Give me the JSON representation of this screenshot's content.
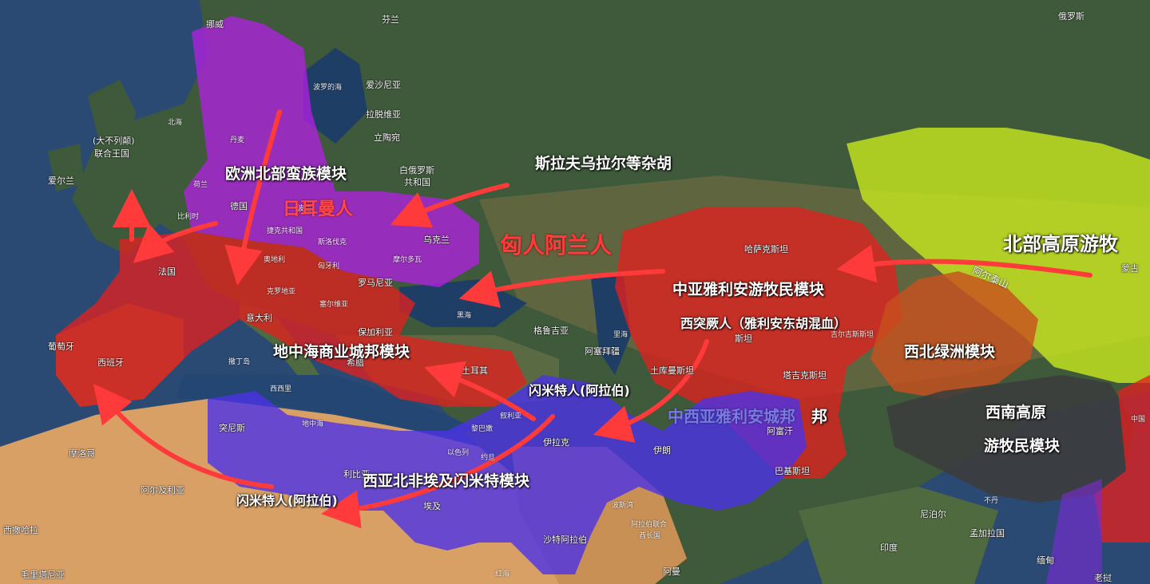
{
  "colors": {
    "sea": "#2b4a73",
    "land_north": "#3d5a3a",
    "land_steppe": "#6e6b3c",
    "desert": "#d9a066",
    "germanic": "#b020e0",
    "mediterranean": "#e0201f",
    "semitic": "#4b32e6",
    "steppe": "#c8e81e",
    "oasis": "#c8501e",
    "tibet": "#3c3c3c",
    "arrow": "#ff3a3a"
  },
  "modules": {
    "north_europe": "欧洲北部蛮族模块",
    "mediterranean": "地中海商业城邦模块",
    "central_asia_nomad": "中亚雅利安游牧民模块",
    "northwest_oasis": "西北绿洲模块",
    "southwest_line1": "西南高原",
    "southwest_line2": "游牧民模块",
    "west_asia_africa": "西亚北非埃及闪米特模块",
    "central_west_asia_city": "中西亚雅利安城邦",
    "north_plateau": "北部高原游牧"
  },
  "peoples": {
    "germanic": "日耳曼人",
    "huns_alans": "匈人阿兰人",
    "slavs_urals": "斯拉夫乌拉尔等杂胡",
    "west_turks": "西突厥人（雅利安东胡混血）",
    "semites_arabs_1": "闪米特人(阿拉伯)",
    "semites_arabs_2": "闪米特人(阿拉伯)"
  },
  "places": {
    "norway": "挪威",
    "finland": "芬兰",
    "russia": "俄罗斯",
    "baltic": "波罗的海",
    "estonia": "爱沙尼亚",
    "latvia": "拉脱维亚",
    "lithuania": "立陶宛",
    "belarus_1": "白俄罗斯",
    "belarus_2": "共和国",
    "uk_1": "(大不列颠)",
    "uk_2": "联合王国",
    "ireland": "爱尔兰",
    "north_sea": "北海",
    "denmark": "丹麦",
    "germany": "德国",
    "netherlands": "荷兰",
    "belgium": "比利时",
    "poland": "波兰",
    "czech": "捷克共和国",
    "slovakia": "斯洛伐克",
    "ukraine": "乌克兰",
    "moldova": "摩尔多瓦",
    "france": "法国",
    "austria": "奥地利",
    "hungary": "匈牙利",
    "croatia": "克罗地亚",
    "serbia": "塞尔维亚",
    "romania": "罗马尼亚",
    "bulgaria": "保加利亚",
    "italy": "意大利",
    "greece": "希腊",
    "portugal": "葡萄牙",
    "spain": "西班牙",
    "black_sea": "黑海",
    "georgia": "格鲁吉亚",
    "azerbaijan": "阿塞拜疆",
    "turkey": "土耳其",
    "caspian": "里海",
    "kazakhstan": "哈萨克斯坦",
    "uzbekistan": "斯坦",
    "turkmenistan": "土库曼斯坦",
    "tajikistan": "塔吉克斯坦",
    "kyrgyzstan": "吉尔吉斯斯坦",
    "afghanistan": "阿富汗",
    "pakistan": "巴基斯坦",
    "iran": "伊朗",
    "iraq": "伊拉克",
    "syria": "叙利亚",
    "lebanon": "黎巴嫩",
    "israel": "以色列",
    "jordan": "约旦",
    "egypt": "埃及",
    "libya": "利比亚",
    "tunisia": "突尼斯",
    "sardinia": "撒丁岛",
    "sicily": "西西里",
    "mediterranean_sea": "地中海",
    "morocco": "摩洛哥",
    "algeria": "阿尔及利亚",
    "western_sahara": "西撒哈拉",
    "mauritania": "毛里塔尼亚",
    "saudi": "沙特阿拉伯",
    "gulf": "波斯湾",
    "uae_1": "阿拉伯联合",
    "uae_2": "酋长国",
    "oman": "阿曼",
    "red_sea": "红海",
    "mongolia": "蒙古",
    "altai": "阿尔泰山",
    "nepal": "尼泊尔",
    "bhutan": "不丹",
    "bangladesh": "孟加拉国",
    "india": "印度",
    "myanmar": "缅甸",
    "laos": "老挝",
    "china": "中国"
  }
}
